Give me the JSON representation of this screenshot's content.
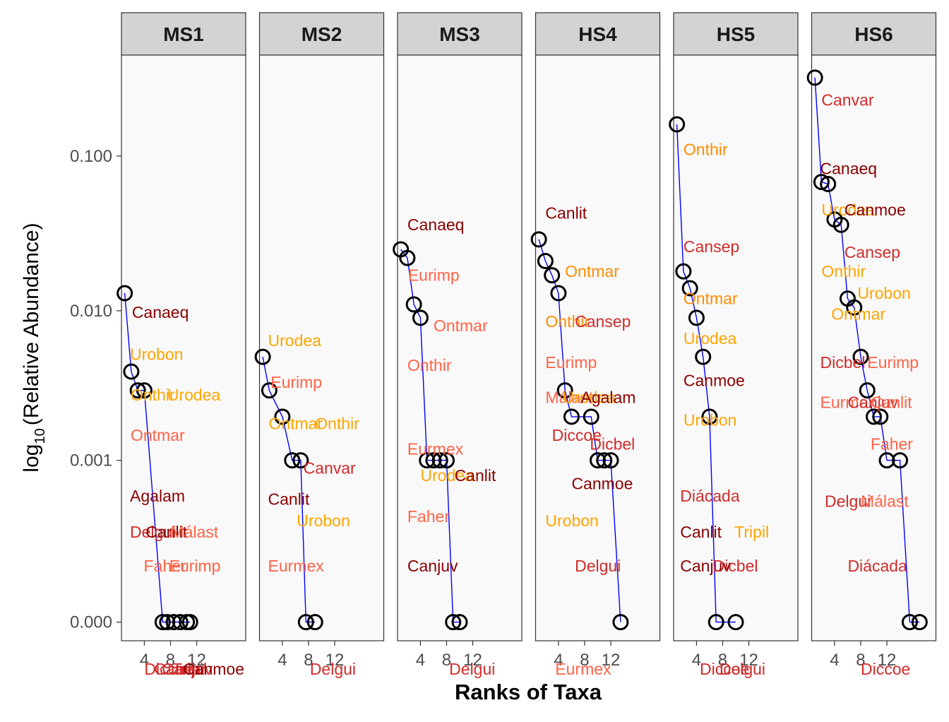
{
  "chart_data": {
    "type": "scatter",
    "xlabel": "Ranks of Taxa",
    "ylabel_main": "log",
    "ylabel_sub": "10",
    "ylabel_rest": "(Relative Abundance)",
    "y_scale": "log10 (offset)",
    "y_ticks": [
      "0.000",
      "0.001",
      "0.010",
      "0.100"
    ],
    "x_ticks": [
      "4",
      "8",
      "12"
    ],
    "xlim": [
      0.5,
      19.5
    ],
    "line_color": "#0000FF",
    "point_outline_color": "#000000",
    "panel_bg": "#F9F9F9",
    "strip_bg": "#D3D3D3",
    "label_colors": {
      "dark_red": "#8B0000",
      "red": "#D22B2B",
      "tomato": "#FF6347",
      "orange": "#FFA500",
      "dark_orange": "#FF8C00"
    },
    "panels": [
      {
        "name": "MS1",
        "points": [
          [
            1,
            0.013
          ],
          [
            2,
            0.004
          ],
          [
            3,
            0.003
          ],
          [
            4,
            0.003
          ],
          [
            6.8,
            0.0
          ],
          [
            11,
            0.0
          ],
          [
            7.5,
            0.0
          ],
          [
            8.5,
            0.0
          ],
          [
            9.5,
            0.0
          ],
          [
            10.5,
            0.0
          ]
        ],
        "labels": [
          {
            "text": "Canaeq",
            "x": 2.1,
            "y": 0.0098,
            "color": "#8B0000"
          },
          {
            "text": "Urobon",
            "x": 1.8,
            "y": 0.0052,
            "color": "#FFA500"
          },
          {
            "text": "Onthir",
            "x": 1.9,
            "y": 0.0028,
            "color": "#FFA500"
          },
          {
            "text": "Urodea",
            "x": 7.5,
            "y": 0.0028,
            "color": "#FFA500"
          },
          {
            "text": "Ontmar",
            "x": 1.9,
            "y": 0.0015,
            "color": "#FF6347"
          },
          {
            "text": "Agalam",
            "x": 1.8,
            "y": 0.00055,
            "color": "#8B0000"
          },
          {
            "text": "Delgui",
            "x": 1.8,
            "y": 0.00028,
            "color": "#D22B2B"
          },
          {
            "text": "Canlit",
            "x": 4.2,
            "y": 0.00028,
            "color": "#8B0000"
          },
          {
            "text": "Málast",
            "x": 8.0,
            "y": 0.00028,
            "color": "#FF6347"
          },
          {
            "text": "Faher",
            "x": 3.9,
            "y": 0.00013,
            "color": "#FF6347"
          },
          {
            "text": "Eurimp",
            "x": 7.8,
            "y": 0.00013,
            "color": "#FF6347"
          },
          {
            "text": "Diccoe",
            "x": 4.0,
            "y": -5e-05,
            "color": "#D22B2B"
          },
          {
            "text": "Canvar",
            "x": 5.5,
            "y": -5e-05,
            "color": "#D22B2B"
          },
          {
            "text": "Canjuv",
            "x": 6.7,
            "y": -5e-05,
            "color": "#D22B2B"
          },
          {
            "text": "Tripil",
            "x": 8.3,
            "y": -5e-05,
            "color": "#D22B2B"
          },
          {
            "text": "Canmoe",
            "x": 9.9,
            "y": -5e-05,
            "color": "#8B0000"
          }
        ]
      },
      {
        "name": "MS2",
        "points": [
          [
            1,
            0.005
          ],
          [
            2,
            0.003
          ],
          [
            4,
            0.002
          ],
          [
            5.5,
            0.001
          ],
          [
            6.8,
            0.001
          ],
          [
            7.6,
            0.0
          ],
          [
            9,
            0.0
          ]
        ],
        "labels": [
          {
            "text": "Urodea",
            "x": 1.8,
            "y": 0.0064,
            "color": "#FFA500"
          },
          {
            "text": "Eurimp",
            "x": 2.2,
            "y": 0.0034,
            "color": "#FF6347"
          },
          {
            "text": "Ontmar",
            "x": 1.9,
            "y": 0.0018,
            "color": "#FFA500"
          },
          {
            "text": "Onthir",
            "x": 9.0,
            "y": 0.0018,
            "color": "#FFA500"
          },
          {
            "text": "Canvar",
            "x": 7.2,
            "y": 0.00088,
            "color": "#D22B2B"
          },
          {
            "text": "Canlit",
            "x": 1.8,
            "y": 0.00052,
            "color": "#8B0000"
          },
          {
            "text": "Urobon",
            "x": 6.2,
            "y": 0.00035,
            "color": "#FFA500"
          },
          {
            "text": "Eurmex",
            "x": 1.8,
            "y": 0.00013,
            "color": "#FF6347"
          },
          {
            "text": "Delgui",
            "x": 8.2,
            "y": -5e-05,
            "color": "#D22B2B"
          }
        ]
      },
      {
        "name": "MS3",
        "points": [
          [
            1,
            0.025
          ],
          [
            2,
            0.022
          ],
          [
            3,
            0.011
          ],
          [
            4,
            0.009
          ],
          [
            5,
            0.001
          ],
          [
            6,
            0.001
          ],
          [
            7,
            0.001
          ],
          [
            8,
            0.001
          ],
          [
            9,
            0.0
          ],
          [
            10,
            0.0
          ]
        ],
        "labels": [
          {
            "text": "Canaeq",
            "x": 2.0,
            "y": 0.036,
            "color": "#8B0000"
          },
          {
            "text": "Eurimp",
            "x": 2.1,
            "y": 0.017,
            "color": "#FF6347"
          },
          {
            "text": "Ontmar",
            "x": 6.0,
            "y": 0.008,
            "color": "#FF6347"
          },
          {
            "text": "Onthir",
            "x": 2.0,
            "y": 0.0044,
            "color": "#FF6347"
          },
          {
            "text": "Eurmex",
            "x": 2.0,
            "y": 0.0012,
            "color": "#FF6347"
          },
          {
            "text": "Urodea",
            "x": 4.0,
            "y": 0.00078,
            "color": "#FFA500"
          },
          {
            "text": "Canlit",
            "x": 9.2,
            "y": 0.00078,
            "color": "#8B0000"
          },
          {
            "text": "Faher",
            "x": 2.0,
            "y": 0.00038,
            "color": "#FF6347"
          },
          {
            "text": "Canjuv",
            "x": 2.0,
            "y": 0.00013,
            "color": "#8B0000"
          },
          {
            "text": "Delgui",
            "x": 8.4,
            "y": -5e-05,
            "color": "#D22B2B"
          }
        ]
      },
      {
        "name": "HS4",
        "points": [
          [
            1,
            0.029
          ],
          [
            2,
            0.021
          ],
          [
            3,
            0.017
          ],
          [
            4,
            0.013
          ],
          [
            5,
            0.003
          ],
          [
            6,
            0.002
          ],
          [
            9,
            0.002
          ],
          [
            10,
            0.001
          ],
          [
            11,
            0.001
          ],
          [
            12,
            0.001
          ],
          [
            13.5,
            0.0
          ]
        ],
        "labels": [
          {
            "text": "Canlit",
            "x": 2.0,
            "y": 0.043,
            "color": "#8B0000"
          },
          {
            "text": "Ontmar",
            "x": 5.0,
            "y": 0.018,
            "color": "#FF8C00"
          },
          {
            "text": "Onthir",
            "x": 2.0,
            "y": 0.0085,
            "color": "#FF8C00"
          },
          {
            "text": "Cansep",
            "x": 6.5,
            "y": 0.0085,
            "color": "#D22B2B"
          },
          {
            "text": "Eurimp",
            "x": 2.0,
            "y": 0.0046,
            "color": "#FF6347"
          },
          {
            "text": "Málast",
            "x": 2.0,
            "y": 0.0027,
            "color": "#FF6347"
          },
          {
            "text": "Urodea",
            "x": 4.6,
            "y": 0.0027,
            "color": "#FFA500"
          },
          {
            "text": "Agalam",
            "x": 7.4,
            "y": 0.0027,
            "color": "#8B0000"
          },
          {
            "text": "Diccoe",
            "x": 3.0,
            "y": 0.0015,
            "color": "#D22B2B"
          },
          {
            "text": "Dicbel",
            "x": 8.8,
            "y": 0.0013,
            "color": "#D22B2B"
          },
          {
            "text": "Canmoe",
            "x": 6.0,
            "y": 0.00068,
            "color": "#8B0000"
          },
          {
            "text": "Urobon",
            "x": 2.0,
            "y": 0.00035,
            "color": "#FFA500"
          },
          {
            "text": "Delgui",
            "x": 6.5,
            "y": 0.00013,
            "color": "#D22B2B"
          },
          {
            "text": "Eurmex",
            "x": 3.5,
            "y": -5e-05,
            "color": "#FF6347"
          }
        ]
      },
      {
        "name": "HS5",
        "points": [
          [
            1,
            0.16
          ],
          [
            2,
            0.018
          ],
          [
            3,
            0.014
          ],
          [
            4,
            0.009
          ],
          [
            5,
            0.005
          ],
          [
            6,
            0.002
          ],
          [
            7,
            0.0
          ],
          [
            10,
            0.0
          ]
        ],
        "labels": [
          {
            "text": "Onthir",
            "x": 2.0,
            "y": 0.11,
            "color": "#FF8C00"
          },
          {
            "text": "Cansep",
            "x": 2.0,
            "y": 0.026,
            "color": "#D22B2B"
          },
          {
            "text": "Ontmar",
            "x": 2.0,
            "y": 0.012,
            "color": "#FF8C00"
          },
          {
            "text": "Urodea",
            "x": 2.0,
            "y": 0.0066,
            "color": "#FFA500"
          },
          {
            "text": "Canmoe",
            "x": 2.0,
            "y": 0.0035,
            "color": "#8B0000"
          },
          {
            "text": "Urobon",
            "x": 2.0,
            "y": 0.0019,
            "color": "#FFA500"
          },
          {
            "text": "Diácada",
            "x": 1.5,
            "y": 0.00055,
            "color": "#D22B2B"
          },
          {
            "text": "Canlit",
            "x": 1.5,
            "y": 0.00028,
            "color": "#8B0000"
          },
          {
            "text": "Tripil",
            "x": 9.8,
            "y": 0.00028,
            "color": "#FFA500"
          },
          {
            "text": "Canjuv",
            "x": 1.5,
            "y": 0.00013,
            "color": "#8B0000"
          },
          {
            "text": "Dicbel",
            "x": 6.5,
            "y": 0.00013,
            "color": "#D22B2B"
          },
          {
            "text": "Diccoe",
            "x": 4.5,
            "y": -5e-05,
            "color": "#D22B2B"
          },
          {
            "text": "Delgui",
            "x": 7.5,
            "y": -5e-05,
            "color": "#D22B2B"
          }
        ]
      },
      {
        "name": "HS6",
        "points": [
          [
            1,
            0.32
          ],
          [
            2,
            0.068
          ],
          [
            3,
            0.066
          ],
          [
            4,
            0.039
          ],
          [
            5,
            0.036
          ],
          [
            6,
            0.012
          ],
          [
            7,
            0.0105
          ],
          [
            8,
            0.005
          ],
          [
            9,
            0.003
          ],
          [
            10,
            0.002
          ],
          [
            11,
            0.002
          ],
          [
            12,
            0.001
          ],
          [
            14,
            0.001
          ],
          [
            15.5,
            0.0
          ],
          [
            17,
            0.0
          ]
        ],
        "labels": [
          {
            "text": "Canvar",
            "x": 2.0,
            "y": 0.23,
            "color": "#D22B2B"
          },
          {
            "text": "Canaeq",
            "x": 1.8,
            "y": 0.083,
            "color": "#8B0000"
          },
          {
            "text": "Urodea",
            "x": 2.0,
            "y": 0.045,
            "color": "#FFA500"
          },
          {
            "text": "Canmoe",
            "x": 5.5,
            "y": 0.045,
            "color": "#8B0000"
          },
          {
            "text": "Cansep",
            "x": 5.5,
            "y": 0.024,
            "color": "#D22B2B"
          },
          {
            "text": "Onthir",
            "x": 2.0,
            "y": 0.018,
            "color": "#FFA500"
          },
          {
            "text": "Urobon",
            "x": 7.5,
            "y": 0.013,
            "color": "#FFA500"
          },
          {
            "text": "Ontmar",
            "x": 3.5,
            "y": 0.0095,
            "color": "#FFA500"
          },
          {
            "text": "Dicbel",
            "x": 1.8,
            "y": 0.0046,
            "color": "#D22B2B"
          },
          {
            "text": "Eurimp",
            "x": 9.0,
            "y": 0.0046,
            "color": "#FF6347"
          },
          {
            "text": "Eurmex",
            "x": 1.8,
            "y": 0.0025,
            "color": "#FF6347"
          },
          {
            "text": "Canjuv",
            "x": 6.0,
            "y": 0.0025,
            "color": "#D22B2B"
          },
          {
            "text": "Canlit",
            "x": 9.5,
            "y": 0.0025,
            "color": "#FF6347"
          },
          {
            "text": "Faher",
            "x": 9.5,
            "y": 0.0013,
            "color": "#FF6347"
          },
          {
            "text": "Delgui",
            "x": 2.5,
            "y": 0.0005,
            "color": "#D22B2B"
          },
          {
            "text": "Málast",
            "x": 8.0,
            "y": 0.0005,
            "color": "#FF6347"
          },
          {
            "text": "Diácada",
            "x": 6.0,
            "y": 0.00013,
            "color": "#D22B2B"
          },
          {
            "text": "Diccoe",
            "x": 8.0,
            "y": -5e-05,
            "color": "#D22B2B"
          }
        ]
      }
    ]
  }
}
